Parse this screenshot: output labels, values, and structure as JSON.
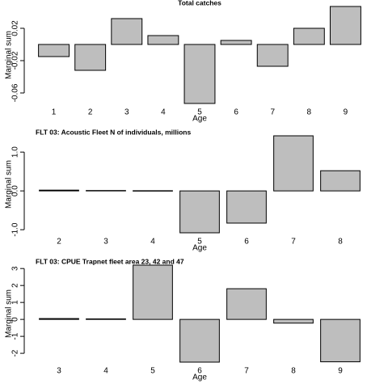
{
  "chart_data": [
    {
      "type": "bar",
      "title": "Total catches",
      "ylabel": "Marginal sum",
      "xlabel": "Age",
      "categories": [
        "1",
        "2",
        "3",
        "4",
        "5",
        "6",
        "7",
        "8",
        "9"
      ],
      "values": [
        -0.015,
        -0.032,
        0.032,
        0.011,
        -0.073,
        0.005,
        -0.027,
        0.02,
        0.047
      ],
      "color": "#bebebe",
      "ylim": [
        -0.073,
        0.047
      ],
      "yticks": [
        -0.06,
        -0.02,
        0.02
      ]
    },
    {
      "type": "bar",
      "title": "FLT 03: Acoustic Fleet   N of individuals, millions",
      "ylabel": "Marginal sum",
      "xlabel": "Age",
      "categories": [
        "2",
        "3",
        "4",
        "5",
        "6",
        "7",
        "8"
      ],
      "values": [
        0.02,
        0.01,
        0.005,
        -1.08,
        -0.83,
        1.42,
        0.52
      ],
      "color": "#bebebe",
      "ylim": [
        -1.08,
        1.42
      ],
      "yticks": [
        {
          "value": -1,
          "label": "-1.0"
        },
        {
          "value": 0,
          "label": "0.0"
        },
        {
          "value": 1,
          "label": "1.0"
        }
      ]
    },
    {
      "type": "bar",
      "title": "FLT 03: CPUE Trapnet fleet area 23, 42 and 47",
      "ylabel": "Marginal sum",
      "xlabel": "Age",
      "categories": [
        "3",
        "4",
        "5",
        "6",
        "7",
        "8",
        "9"
      ],
      "values": [
        0.05,
        0.03,
        3.2,
        -2.52,
        1.81,
        -0.22,
        -2.5
      ],
      "color": "#bebebe",
      "ylim": [
        -2.52,
        3.2
      ],
      "yticks": [
        -2,
        -1,
        0,
        1,
        2,
        3
      ]
    }
  ]
}
